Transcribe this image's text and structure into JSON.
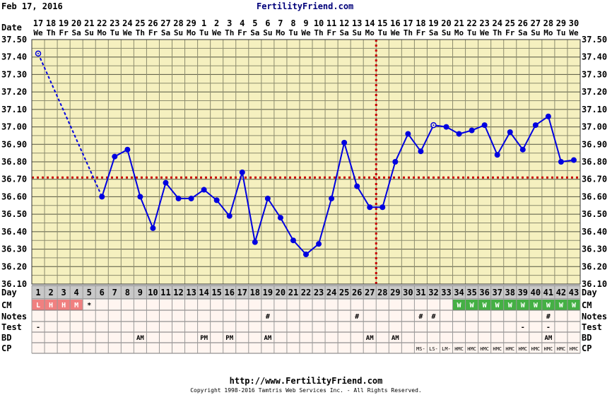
{
  "header": {
    "date": "Feb 17, 2016",
    "site": "FertilityFriend.com"
  },
  "footer": {
    "url": "http://www.FertilityFriend.com",
    "copyright": "Copyright 1998-2016 Tamtris Web Services Inc. - All Rights Reserved."
  },
  "colors": {
    "background": "#F5F0BF",
    "grid": "#8C8C6E",
    "line": "#0000E0",
    "coverline": "#C80000",
    "cm_red": "#F08080",
    "cm_green": "#44B044",
    "day_row": "#C8C8C8"
  },
  "chart_data": {
    "type": "line",
    "title": "",
    "ylabel": "",
    "xlabel": "",
    "ylim": [
      36.1,
      37.5
    ],
    "yticks": [
      "37.50",
      "37.40",
      "37.30",
      "37.20",
      "37.10",
      "37.00",
      "36.90",
      "36.80",
      "36.70",
      "36.60",
      "36.50",
      "36.40",
      "36.30",
      "36.20",
      "36.10"
    ],
    "row_labels": {
      "date": "Date",
      "day": "Day",
      "cm": "CM",
      "notes": "Notes",
      "test": "Test",
      "bd": "BD",
      "cp": "CP"
    },
    "dates": [
      "17",
      "18",
      "19",
      "20",
      "21",
      "22",
      "23",
      "24",
      "25",
      "26",
      "27",
      "28",
      "29",
      "1",
      "2",
      "3",
      "4",
      "5",
      "6",
      "7",
      "8",
      "9",
      "10",
      "11",
      "12",
      "13",
      "14",
      "15",
      "16",
      "17",
      "18",
      "19",
      "20",
      "21",
      "22",
      "23",
      "24",
      "25",
      "26",
      "27",
      "28",
      "29",
      "30"
    ],
    "weekdays": [
      "We",
      "Th",
      "Fr",
      "Sa",
      "Su",
      "Mo",
      "Tu",
      "We",
      "Th",
      "Fr",
      "Sa",
      "Su",
      "Mo",
      "Tu",
      "We",
      "Th",
      "Fr",
      "Sa",
      "Su",
      "Mo",
      "Tu",
      "We",
      "Th",
      "Fr",
      "Sa",
      "Su",
      "Mo",
      "Tu",
      "We",
      "Th",
      "Fr",
      "Sa",
      "Su",
      "Mo",
      "Tu",
      "We",
      "Th",
      "Fr",
      "Sa",
      "Su",
      "Mo",
      "Tu",
      "We"
    ],
    "days": [
      "1",
      "2",
      "3",
      "4",
      "5",
      "6",
      "7",
      "8",
      "9",
      "10",
      "11",
      "12",
      "13",
      "14",
      "15",
      "16",
      "17",
      "18",
      "19",
      "20",
      "21",
      "22",
      "23",
      "24",
      "25",
      "26",
      "27",
      "28",
      "29",
      "30",
      "31",
      "32",
      "33",
      "34",
      "35",
      "36",
      "37",
      "38",
      "39",
      "40",
      "41",
      "42",
      "43"
    ],
    "temperatures": [
      37.42,
      null,
      null,
      null,
      null,
      36.6,
      36.83,
      36.87,
      36.6,
      36.42,
      36.68,
      36.59,
      36.59,
      36.64,
      36.58,
      36.49,
      36.74,
      36.34,
      36.59,
      36.48,
      36.35,
      36.27,
      36.33,
      36.59,
      36.91,
      36.66,
      36.54,
      36.54,
      36.8,
      36.96,
      36.86,
      37.01,
      37.0,
      36.96,
      36.98,
      37.01,
      36.84,
      36.97,
      36.87,
      37.01,
      37.06,
      36.8,
      36.81
    ],
    "open_points": [
      1,
      32
    ],
    "dashed_to_day": 6,
    "coverline": 36.71,
    "ovulation_day": 28,
    "cm": [
      "L",
      "H",
      "H",
      "M",
      "*",
      "",
      "",
      "",
      "",
      "",
      "",
      "",
      "",
      "",
      "",
      "",
      "",
      "",
      "",
      "",
      "",
      "",
      "",
      "",
      "",
      "",
      "",
      "",
      "",
      "",
      "",
      "",
      "",
      "W",
      "W",
      "W",
      "W",
      "W",
      "W",
      "W",
      "W",
      "W",
      "W"
    ],
    "notes": [
      "",
      "",
      "",
      "",
      "",
      "",
      "",
      "",
      "",
      "",
      "",
      "",
      "",
      "",
      "",
      "",
      "",
      "",
      "#",
      "",
      "",
      "",
      "",
      "",
      "",
      "#",
      "",
      "",
      "",
      "",
      "#",
      "#",
      "",
      "",
      "",
      "",
      "",
      "",
      "",
      "",
      "#",
      "",
      ""
    ],
    "test": [
      "-",
      "",
      "",
      "",
      "",
      "",
      "",
      "",
      "",
      "",
      "",
      "",
      "",
      "",
      "",
      "",
      "",
      "",
      "",
      "",
      "",
      "",
      "",
      "",
      "",
      "",
      "",
      "",
      "",
      "",
      "",
      "",
      "",
      "",
      "",
      "",
      "",
      "",
      "-",
      "",
      "-",
      "",
      ""
    ],
    "bd": [
      "",
      "",
      "",
      "",
      "",
      "",
      "",
      "",
      "AM",
      "",
      "",
      "",
      "",
      "PM",
      "",
      "PM",
      "",
      "",
      "AM",
      "",
      "",
      "",
      "",
      "",
      "",
      "",
      "AM",
      "",
      "AM",
      "",
      "",
      "",
      "",
      "",
      "",
      "",
      "",
      "",
      "",
      "",
      "AM",
      "",
      ""
    ],
    "cp": [
      "",
      "",
      "",
      "",
      "",
      "",
      "",
      "",
      "",
      "",
      "",
      "",
      "",
      "",
      "",
      "",
      "",
      "",
      "",
      "",
      "",
      "",
      "",
      "",
      "",
      "",
      "",
      "",
      "",
      "",
      "MS-",
      "LS-",
      "LM-",
      "HMC",
      "HMC",
      "HMC",
      "HMC",
      "HMC",
      "HMC",
      "HMC",
      "HMC",
      "HMC",
      "HMC"
    ]
  }
}
